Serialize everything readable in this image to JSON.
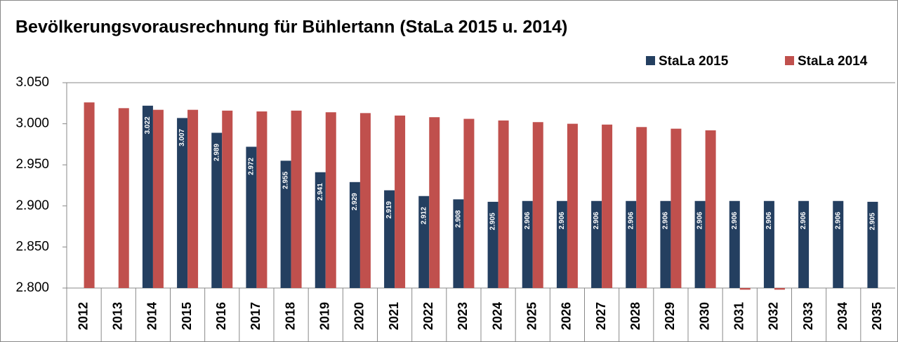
{
  "chart_data": {
    "type": "bar",
    "title": "Bevölkerungsvorausrechnung für Bühlertann (StaLa 2015 u. 2014)",
    "categories": [
      "2012",
      "2013",
      "2014",
      "2015",
      "2016",
      "2017",
      "2018",
      "2019",
      "2020",
      "2021",
      "2022",
      "2023",
      "2024",
      "2025",
      "2026",
      "2027",
      "2028",
      "2029",
      "2030",
      "2031",
      "2032",
      "2033",
      "2034",
      "2035"
    ],
    "series": [
      {
        "name": "StaLa 2015",
        "color": "#243f60",
        "values": [
          null,
          null,
          3022,
          3007,
          2989,
          2972,
          2955,
          2941,
          2929,
          2919,
          2912,
          2908,
          2905,
          2906,
          2906,
          2906,
          2906,
          2906,
          2906,
          2906,
          2906,
          2906,
          2906,
          2905
        ],
        "value_labels": [
          null,
          null,
          "3.022",
          "3.007",
          "2.989",
          "2.972",
          "2.955",
          "2.941",
          "2.929",
          "2.919",
          "2.912",
          "2.908",
          "2.905",
          "2.906",
          "2.906",
          "2.906",
          "2.906",
          "2.906",
          "2.906",
          "2.906",
          "2.906",
          "2.906",
          "2.906",
          "2.905"
        ]
      },
      {
        "name": "StaLa 2014",
        "color": "#c0504d",
        "values": [
          3026,
          3019,
          3017,
          3017,
          3016,
          3015,
          3016,
          3014,
          3013,
          3010,
          3008,
          3006,
          3004,
          3002,
          3000,
          2999,
          2996,
          2994,
          2992,
          2798,
          2798,
          null,
          null,
          null
        ]
      }
    ],
    "ylim": [
      2800,
      3050
    ],
    "yticks": [
      {
        "value": 2800,
        "label": "2.800"
      },
      {
        "value": 2850,
        "label": "2.850"
      },
      {
        "value": 2900,
        "label": "2.900"
      },
      {
        "value": 2950,
        "label": "2.950"
      },
      {
        "value": 3000,
        "label": "3.000"
      },
      {
        "value": 3050,
        "label": "3.050"
      }
    ],
    "grid": false,
    "legend": "top-right"
  }
}
